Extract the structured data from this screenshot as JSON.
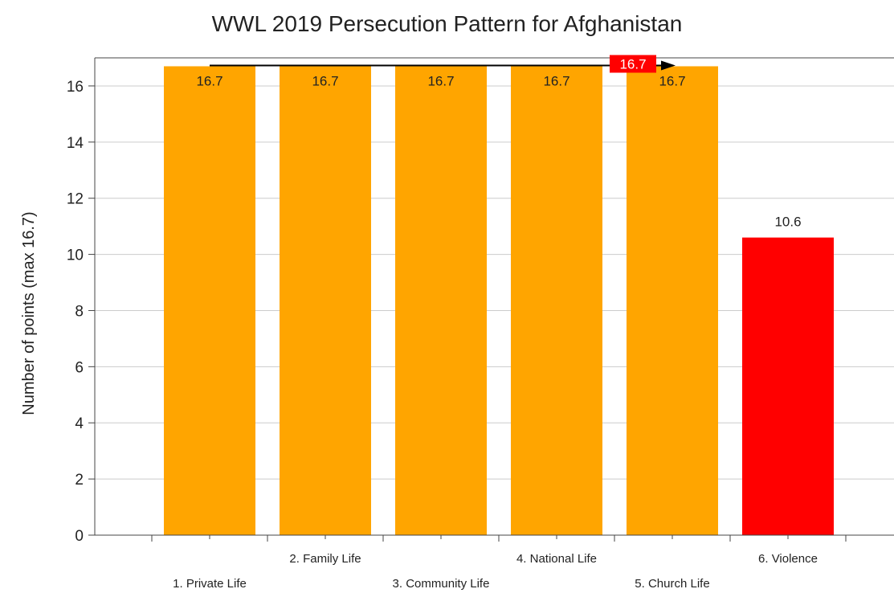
{
  "chart_data": {
    "type": "bar",
    "title": "WWL 2019 Persecution Pattern for Afghanistan",
    "ylabel": "Number of points (max 16.7)",
    "xlabel": "",
    "categories": [
      "1. Private Life",
      "2. Family Life",
      "3. Community Life",
      "4. National Life",
      "5. Church Life",
      "6. Violence"
    ],
    "values": [
      16.7,
      16.7,
      16.7,
      16.7,
      16.7,
      10.6
    ],
    "value_labels": [
      "16.7",
      "16.7",
      "16.7",
      "16.7",
      "16.7",
      "10.6"
    ],
    "bar_colors": [
      "#FFA500",
      "#FFA500",
      "#FFA500",
      "#FFA500",
      "#FFA500",
      "#FF0000"
    ],
    "ylim": [
      0,
      17
    ],
    "yticks": [
      0,
      2,
      4,
      6,
      8,
      10,
      12,
      14,
      16
    ],
    "grid": true,
    "average_line": {
      "value": 16.7,
      "label": "16.7",
      "color": "#000000",
      "label_bg": "#FF0000",
      "span_bars": [
        1,
        5
      ]
    }
  }
}
